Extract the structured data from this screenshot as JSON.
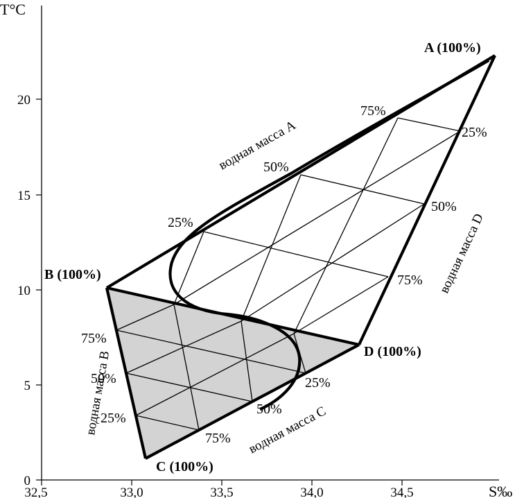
{
  "axes": {
    "y_title": "T°C",
    "x_title": "S‰",
    "y_ticks": [
      "0",
      "5",
      "10",
      "15",
      "20"
    ],
    "x_ticks": [
      "32,5",
      "33,0",
      "33,5",
      "34,0",
      "34,5"
    ]
  },
  "vertices": {
    "A": "A (100%)",
    "B": "B (100%)",
    "C": "C (100%)",
    "D": "D (100%)"
  },
  "percent_labels": {
    "ab": [
      "75%",
      "50%",
      "25%"
    ],
    "ad": [
      "25%",
      "50%",
      "75%"
    ],
    "bc": [
      "75%",
      "50%",
      "25%"
    ],
    "cd": [
      "25%",
      "50%",
      "75%"
    ]
  },
  "water_masses": {
    "A": "водная масса A",
    "B": "водная масса B",
    "C": "водная масса C",
    "D": "водная масса D"
  },
  "colors": {
    "line": "#000000",
    "lower_triangle_fill": "#d3d3d3",
    "background": "#ffffff"
  }
}
